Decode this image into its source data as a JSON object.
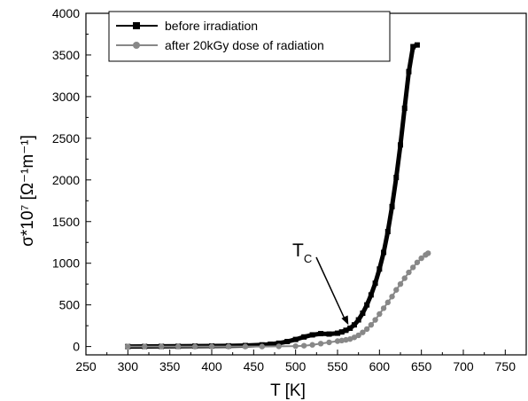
{
  "chart_data": {
    "type": "scatter",
    "xlabel": "T [K]",
    "ylabel": "σ*10⁷ [Ω⁻¹m⁻¹]",
    "xlim": [
      250,
      775
    ],
    "ylim": [
      -100,
      4000
    ],
    "xticks": [
      "250",
      "300",
      "350",
      "400",
      "450",
      "500",
      "550",
      "600",
      "650",
      "700",
      "750"
    ],
    "yticks": [
      "0",
      "500",
      "1000",
      "1500",
      "2000",
      "2500",
      "3000",
      "3500",
      "4000"
    ],
    "grid": false,
    "legend_position": "top-left",
    "series": [
      {
        "name": "before irradiation",
        "color": "#000000",
        "marker": "square",
        "x": [
          300,
          320,
          340,
          360,
          380,
          400,
          420,
          440,
          460,
          470,
          480,
          490,
          500,
          510,
          520,
          530,
          540,
          550,
          555,
          560,
          565,
          570,
          575,
          580,
          585,
          590,
          595,
          600,
          605,
          610,
          615,
          620,
          625,
          630,
          635,
          640,
          645
        ],
        "y": [
          0,
          1,
          2,
          3,
          5,
          6,
          8,
          12,
          20,
          28,
          40,
          60,
          85,
          115,
          140,
          155,
          150,
          160,
          175,
          195,
          220,
          260,
          320,
          400,
          500,
          620,
          760,
          930,
          1130,
          1380,
          1680,
          2030,
          2420,
          2860,
          3300,
          3600,
          3620
        ]
      },
      {
        "name": "after 20kGy dose of radiation",
        "color": "#888888",
        "marker": "circle",
        "x": [
          300,
          320,
          340,
          360,
          380,
          400,
          420,
          440,
          460,
          480,
          500,
          510,
          520,
          530,
          540,
          550,
          555,
          560,
          565,
          570,
          575,
          580,
          585,
          590,
          595,
          600,
          605,
          610,
          615,
          620,
          625,
          630,
          635,
          640,
          645,
          650,
          655,
          658
        ],
        "y": [
          0,
          0,
          0,
          0,
          0,
          0,
          0,
          0,
          0,
          2,
          5,
          10,
          20,
          35,
          50,
          65,
          72,
          80,
          90,
          110,
          135,
          170,
          210,
          260,
          320,
          390,
          460,
          530,
          600,
          680,
          750,
          820,
          890,
          950,
          1010,
          1060,
          1100,
          1120
        ]
      }
    ],
    "annotations": [
      {
        "text": "T",
        "subscript": "C",
        "points_to": [
          563,
          260
        ]
      }
    ]
  }
}
